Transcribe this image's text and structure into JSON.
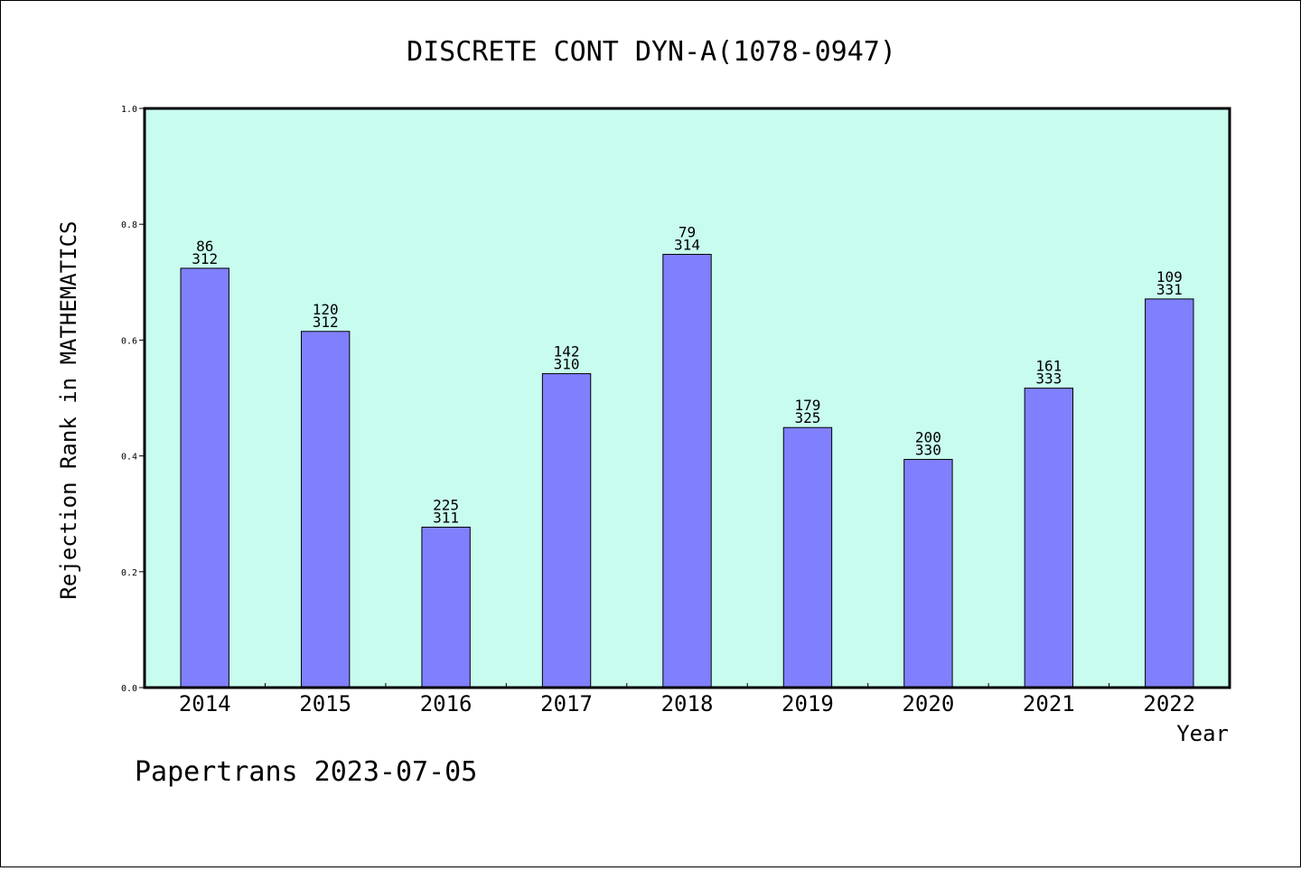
{
  "chart_data": {
    "type": "bar",
    "title": "DISCRETE CONT DYN-A(1078-0947)",
    "xlabel": "Year",
    "ylabel": "Rejection Rank in MATHEMATICS",
    "ylim": [
      0,
      1.0
    ],
    "yticks": [
      "0.0",
      "0.2",
      "0.4",
      "0.6",
      "0.8",
      "1.0"
    ],
    "categories": [
      "2014",
      "2015",
      "2016",
      "2017",
      "2018",
      "2019",
      "2020",
      "2021",
      "2022"
    ],
    "values": [
      0.724,
      0.615,
      0.277,
      0.542,
      0.748,
      0.449,
      0.394,
      0.517,
      0.671
    ],
    "labels_top": [
      "86",
      "120",
      "225",
      "142",
      "79",
      "179",
      "200",
      "161",
      "109"
    ],
    "labels_bottom": [
      "312",
      "312",
      "311",
      "310",
      "314",
      "325",
      "330",
      "333",
      "331"
    ],
    "grid": false,
    "colors": {
      "plot_bg": "#c8fcee",
      "bar": "#8080ff",
      "bar_edge": "#000000"
    }
  },
  "footer": "Papertrans 2023-07-05"
}
